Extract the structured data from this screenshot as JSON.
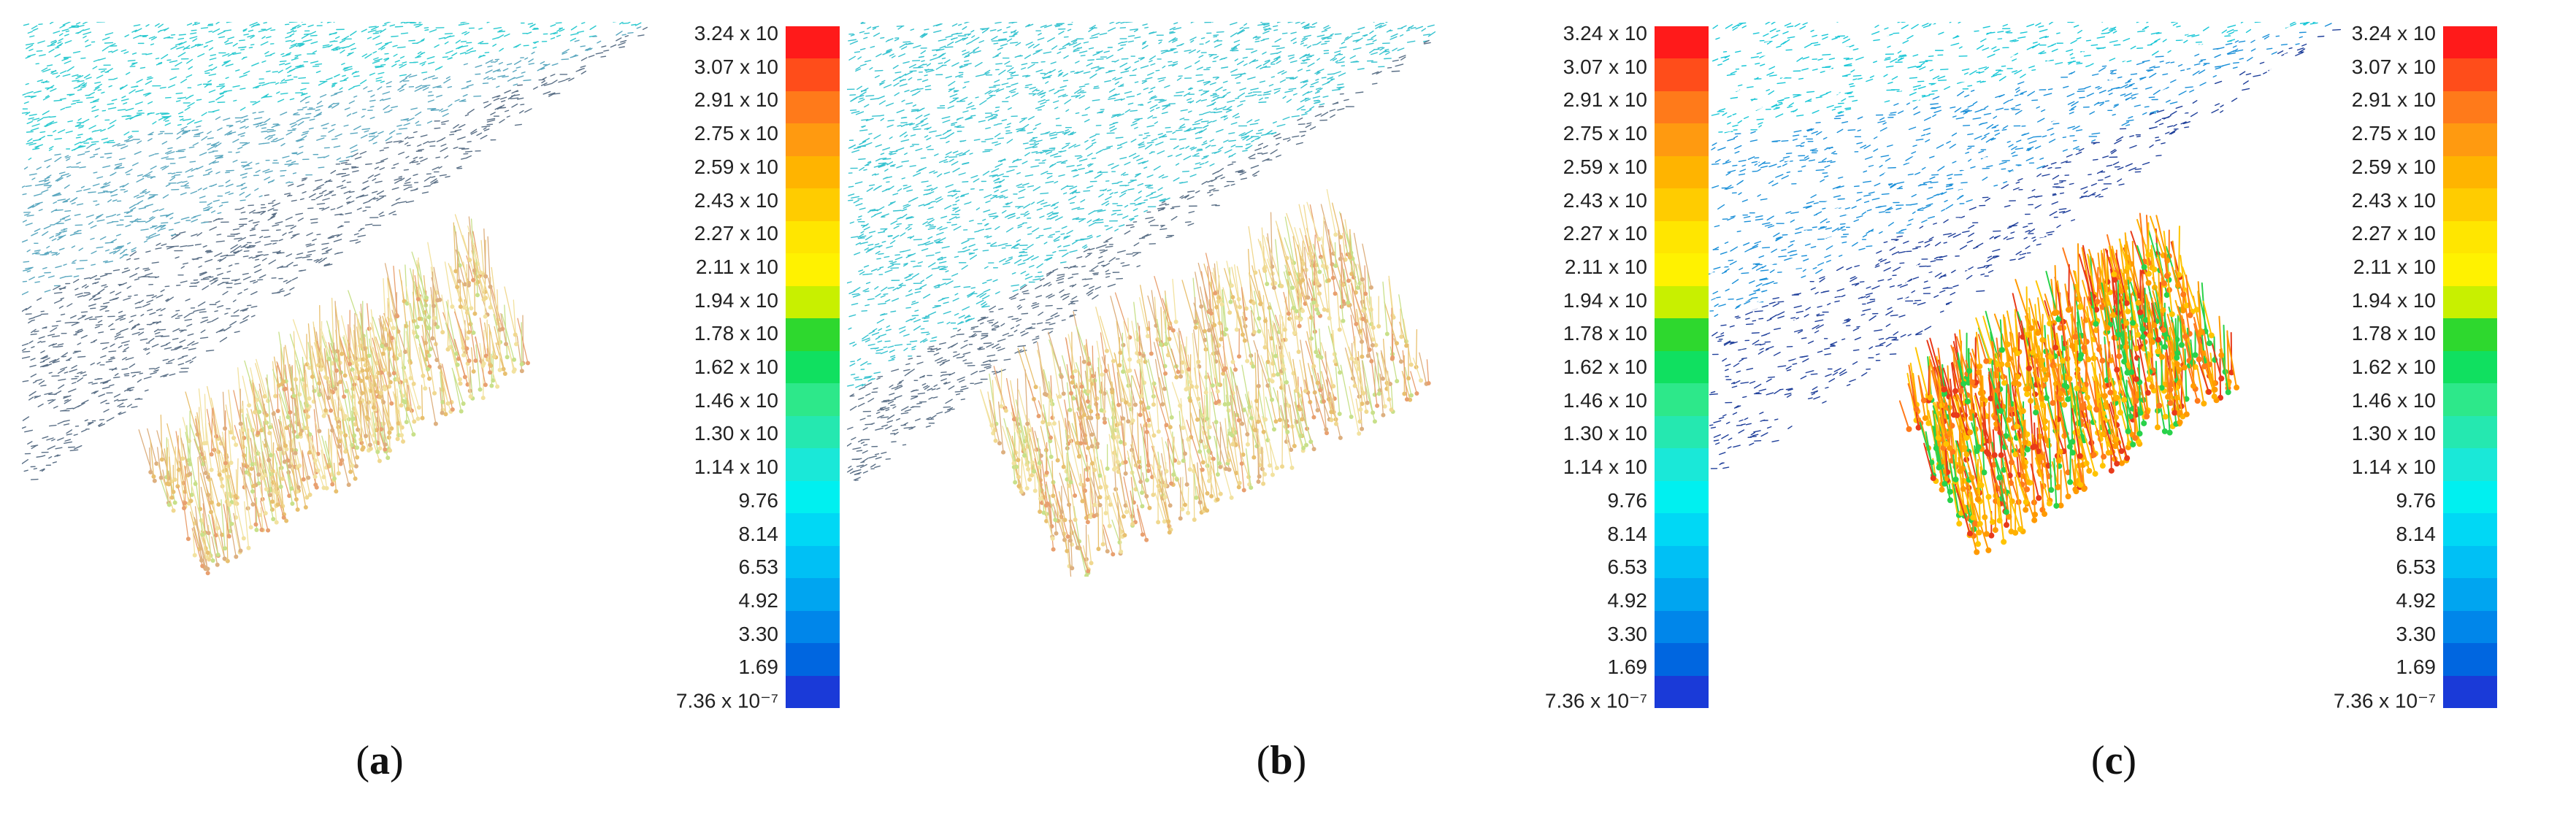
{
  "panels": [
    {
      "label_open": "(",
      "label_letter": "a",
      "label_close": ")"
    },
    {
      "label_open": "(",
      "label_letter": "b",
      "label_close": ")"
    },
    {
      "label_open": "(",
      "label_letter": "c",
      "label_close": ")"
    }
  ],
  "legend": {
    "labels": [
      "3.24 x 10",
      "3.07 x 10",
      "2.91 x 10",
      "2.75 x 10",
      "2.59 x 10",
      "2.43 x 10",
      "2.27 x 10",
      "2.11 x 10",
      "1.94 x 10",
      "1.78 x 10",
      "1.62 x 10",
      "1.46 x 10",
      "1.30 x 10",
      "1.14 x 10",
      "9.76",
      "8.14",
      "6.53",
      "4.92",
      "3.30",
      "1.69",
      "7.36 x 10⁻⁷"
    ],
    "colors": [
      "#ff1a1a",
      "#ff4d1a",
      "#ff7a1a",
      "#ff9a10",
      "#ffb400",
      "#ffcc00",
      "#ffe600",
      "#fff200",
      "#c8f000",
      "#2ed82e",
      "#10e060",
      "#2de88a",
      "#25e8b0",
      "#1ae8d8",
      "#00f0f0",
      "#00d8f5",
      "#00c0f5",
      "#00a5f0",
      "#0086ea",
      "#0066e0",
      "#1a3ad8"
    ]
  }
}
